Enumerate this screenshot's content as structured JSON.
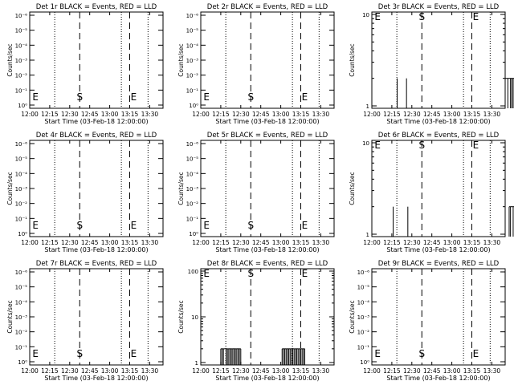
{
  "page": {
    "background": "#ffffff",
    "ink": "#000000"
  },
  "chart_data": [
    {
      "id": "det1",
      "type": "line",
      "title": "Det 1r BLACK = Events, RED = LLD",
      "xlabel": "Start Time (03-Feb-18 12:00:00)",
      "ylabel": "Counts/sec",
      "scale": "log",
      "x_ticks": [
        "12:00",
        "12:15",
        "12:30",
        "12:45",
        "13:00",
        "13:15",
        "13:30"
      ],
      "y_ticks": [
        "10⁰",
        "10⁻¹",
        "10⁻²",
        "10⁻³",
        "10⁻⁴",
        "10⁻⁵",
        "10⁻⁶"
      ],
      "markers": [
        "E",
        "S",
        "E"
      ],
      "series": []
    },
    {
      "id": "det2",
      "type": "line",
      "title": "Det 2r BLACK = Events, RED = LLD",
      "xlabel": "Start Time (03-Feb-18 12:00:00)",
      "ylabel": "Counts/sec",
      "scale": "log",
      "x_ticks": [
        "12:00",
        "12:15",
        "12:30",
        "12:45",
        "13:00",
        "13:15",
        "13:30"
      ],
      "y_ticks": [
        "10⁰",
        "10⁻¹",
        "10⁻²",
        "10⁻³",
        "10⁻⁴",
        "10⁻⁵",
        "10⁻⁶"
      ],
      "markers": [
        "E",
        "S",
        "E"
      ],
      "series": []
    },
    {
      "id": "det3",
      "type": "line",
      "title": "Det 3r BLACK = Events, RED = LLD",
      "xlabel": "Start Time (03-Feb-18 12:00:00)",
      "ylabel": "Counts/sec",
      "scale": "linear",
      "x_ticks": [
        "12:00",
        "12:15",
        "12:30",
        "12:45",
        "13:00",
        "13:15",
        "13:30"
      ],
      "y_ticks": [
        "1",
        "10"
      ],
      "markers": [
        "E",
        "S",
        "E"
      ],
      "series": [
        {
          "spikes": [
            19,
            26,
            100,
            102,
            104,
            105,
            106,
            107,
            108,
            110,
            111,
            112
          ]
        }
      ]
    },
    {
      "id": "det4",
      "type": "line",
      "title": "Det 4r BLACK = Events, RED = LLD",
      "xlabel": "Start Time (03-Feb-18 12:00:00)",
      "ylabel": "Counts/sec",
      "scale": "log",
      "x_ticks": [
        "12:00",
        "12:15",
        "12:30",
        "12:45",
        "13:00",
        "13:15",
        "13:30"
      ],
      "y_ticks": [
        "10⁰",
        "10⁻¹",
        "10⁻²",
        "10⁻³",
        "10⁻⁴",
        "10⁻⁵",
        "10⁻⁶"
      ],
      "markers": [
        "E",
        "S",
        "E"
      ],
      "series": []
    },
    {
      "id": "det5",
      "type": "line",
      "title": "Det 5r BLACK = Events, RED = LLD",
      "xlabel": "Start Time (03-Feb-18 12:00:00)",
      "ylabel": "Counts/sec",
      "scale": "log",
      "x_ticks": [
        "12:00",
        "12:15",
        "12:30",
        "12:45",
        "13:00",
        "13:15",
        "13:30"
      ],
      "y_ticks": [
        "10⁰",
        "10⁻¹",
        "10⁻²",
        "10⁻³",
        "10⁻⁴",
        "10⁻⁵",
        "10⁻⁶"
      ],
      "markers": [
        "E",
        "S",
        "E"
      ],
      "series": []
    },
    {
      "id": "det6",
      "type": "line",
      "title": "Det 6r BLACK = Events, RED = LLD",
      "xlabel": "Start Time (03-Feb-18 12:00:00)",
      "ylabel": "Counts/sec",
      "scale": "linear",
      "x_ticks": [
        "12:00",
        "12:15",
        "12:30",
        "12:45",
        "13:00",
        "13:15",
        "13:30"
      ],
      "y_ticks": [
        "1",
        "10"
      ],
      "markers": [
        "E",
        "S",
        "E"
      ],
      "series": [
        {
          "spikes": [
            16,
            27,
            103,
            104,
            106,
            107,
            108,
            109,
            111,
            112,
            113,
            115,
            117
          ]
        }
      ]
    },
    {
      "id": "det7",
      "type": "line",
      "title": "Det 7r BLACK = Events, RED = LLD",
      "xlabel": "Start Time (03-Feb-18 12:00:00)",
      "ylabel": "Counts/sec",
      "scale": "log",
      "x_ticks": [
        "12:00",
        "12:15",
        "12:30",
        "12:45",
        "13:00",
        "13:15",
        "13:30"
      ],
      "y_ticks": [
        "10⁰",
        "10⁻¹",
        "10⁻²",
        "10⁻³",
        "10⁻⁴",
        "10⁻⁵",
        "10⁻⁶"
      ],
      "markers": [
        "E",
        "S",
        "E"
      ],
      "series": []
    },
    {
      "id": "det8",
      "type": "line",
      "title": "Det 8r BLACK = Events, RED = LLD",
      "xlabel": "Start Time (03-Feb-18 12:00:00)",
      "ylabel": "Counts/sec",
      "scale": "linear",
      "x_ticks": [
        "12:00",
        "12:15",
        "12:30",
        "12:45",
        "13:00",
        "13:15",
        "13:30"
      ],
      "y_ticks": [
        "1",
        "10",
        "100"
      ],
      "markers": [
        "E",
        "S",
        "E"
      ],
      "series": [
        {
          "spikes": [
            15,
            16,
            17,
            19,
            20,
            21,
            22,
            23,
            24,
            25,
            26,
            27,
            28,
            29,
            30,
            61,
            62,
            63,
            64,
            65,
            66,
            67,
            68,
            69,
            70,
            71,
            72,
            73,
            74,
            75,
            76,
            77,
            78
          ]
        }
      ]
    },
    {
      "id": "det9",
      "type": "line",
      "title": "Det 9r BLACK = Events, RED = LLD",
      "xlabel": "Start Time (03-Feb-18 12:00:00)",
      "ylabel": "Counts/sec",
      "scale": "log",
      "x_ticks": [
        "12:00",
        "12:15",
        "12:30",
        "12:45",
        "13:00",
        "13:15",
        "13:30"
      ],
      "y_ticks": [
        "10⁰",
        "10⁻¹",
        "10⁻²",
        "10⁻³",
        "10⁻⁴",
        "10⁻⁵",
        "10⁻⁶"
      ],
      "markers": [
        "E",
        "S",
        "E"
      ],
      "series": []
    }
  ]
}
